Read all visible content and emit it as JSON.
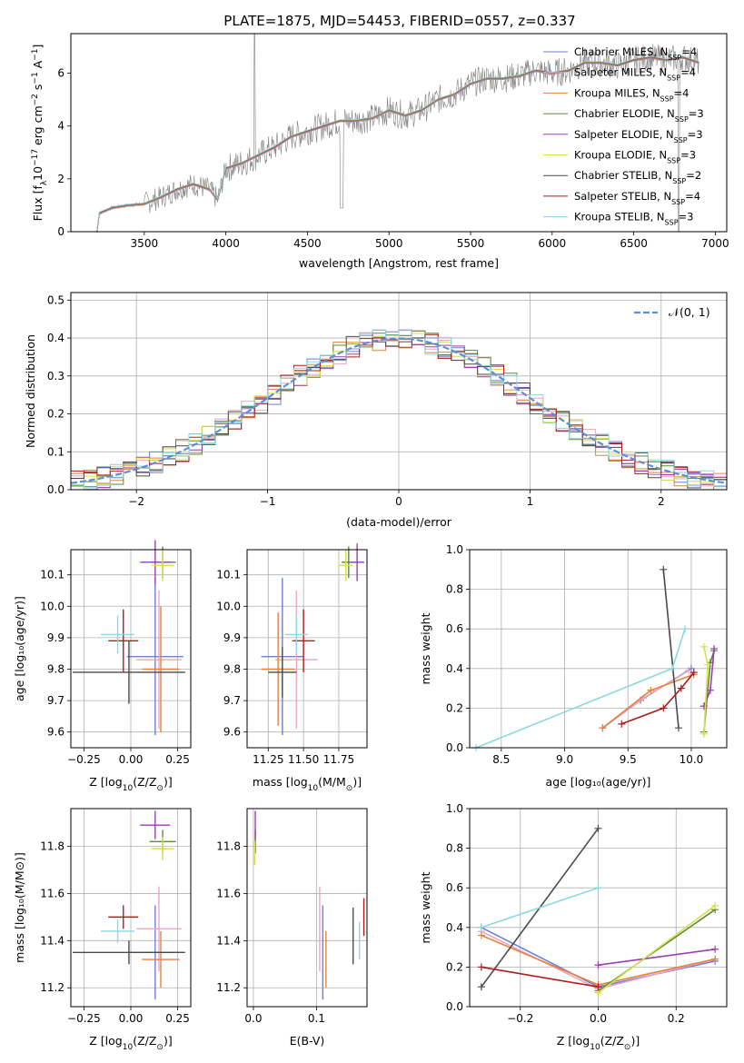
{
  "figure_title": "PLATE=1875, MJD=54453, FIBERID=0557, z=0.337",
  "colors": {
    "chabrier_miles": "#6c7fd8",
    "salpeter_miles": "#e6a6c8",
    "kroupa_miles": "#e8813b",
    "chabrier_elodie": "#5a8a3a",
    "salpeter_elodie": "#9b3db0",
    "kroupa_elodie": "#d6e04a",
    "chabrier_stelib": "#4a4a4a",
    "salpeter_stelib": "#b01c1c",
    "kroupa_stelib": "#8ad8e0",
    "data": "#808080",
    "gaussian": "#5b8fd6"
  },
  "chart_data": [
    {
      "id": "spectrum",
      "type": "line",
      "xlabel": "wavelength [Angstrom, rest frame]",
      "ylabel_main": "Flux [f",
      "ylabel_sub1": "λ",
      "ylabel_mid": "10",
      "ylabel_sup1": "−17",
      "ylabel_rest": " erg cm",
      "ylabel_sup2": "−2",
      "ylabel_s": " s",
      "ylabel_sup3": "−1",
      "ylabel_a": " A",
      "ylabel_sup4": "−1",
      "ylabel_end": "]",
      "xlim": [
        3050,
        7070
      ],
      "ylim": [
        0,
        7.5
      ],
      "xticks": [
        "3500",
        "4000",
        "4500",
        "5000",
        "5500",
        "6000",
        "6500",
        "7000"
      ],
      "yticks": [
        "0",
        "2",
        "4",
        "6"
      ],
      "continuum": [
        [
          3210,
          0.0
        ],
        [
          3225,
          0.7
        ],
        [
          3300,
          0.9
        ],
        [
          3400,
          1.0
        ],
        [
          3500,
          1.05
        ],
        [
          3600,
          1.3
        ],
        [
          3700,
          1.6
        ],
        [
          3800,
          1.8
        ],
        [
          3900,
          1.6
        ],
        [
          3950,
          1.2
        ],
        [
          4000,
          2.4
        ],
        [
          4100,
          2.6
        ],
        [
          4200,
          2.9
        ],
        [
          4300,
          3.2
        ],
        [
          4400,
          3.6
        ],
        [
          4500,
          3.8
        ],
        [
          4600,
          4.0
        ],
        [
          4700,
          4.2
        ],
        [
          4800,
          4.2
        ],
        [
          4900,
          4.3
        ],
        [
          5000,
          4.6
        ],
        [
          5100,
          4.4
        ],
        [
          5200,
          4.6
        ],
        [
          5300,
          5.0
        ],
        [
          5400,
          5.2
        ],
        [
          5500,
          5.6
        ],
        [
          5600,
          5.8
        ],
        [
          5700,
          5.8
        ],
        [
          5800,
          5.9
        ],
        [
          5900,
          6.1
        ],
        [
          6000,
          6.0
        ],
        [
          6100,
          6.1
        ],
        [
          6200,
          6.4
        ],
        [
          6300,
          6.4
        ],
        [
          6400,
          6.3
        ],
        [
          6500,
          6.5
        ],
        [
          6600,
          6.6
        ],
        [
          6700,
          6.5
        ],
        [
          6800,
          6.6
        ],
        [
          6900,
          6.4
        ]
      ],
      "legend": [
        {
          "label": "Chabrier MILES, N",
          "sub": "SSP",
          "suffix": "=4",
          "color_key": "chabrier_miles"
        },
        {
          "label": "Salpeter MILES, N",
          "sub": "SSP",
          "suffix": "=4",
          "color_key": "salpeter_miles"
        },
        {
          "label": "Kroupa MILES, N",
          "sub": "SSP",
          "suffix": "=4",
          "color_key": "kroupa_miles"
        },
        {
          "label": "Chabrier ELODIE, N",
          "sub": "SSP",
          "suffix": "=3",
          "color_key": "chabrier_elodie"
        },
        {
          "label": "Salpeter ELODIE, N",
          "sub": "SSP",
          "suffix": "=3",
          "color_key": "salpeter_elodie"
        },
        {
          "label": "Kroupa ELODIE, N",
          "sub": "SSP",
          "suffix": "=3",
          "color_key": "kroupa_elodie"
        },
        {
          "label": "Chabrier STELIB, N",
          "sub": "SSP",
          "suffix": "=2",
          "color_key": "chabrier_stelib"
        },
        {
          "label": "Salpeter STELIB, N",
          "sub": "SSP",
          "suffix": "=4",
          "color_key": "salpeter_stelib"
        },
        {
          "label": "Kroupa STELIB, N",
          "sub": "SSP",
          "suffix": "=3",
          "color_key": "kroupa_stelib"
        }
      ]
    },
    {
      "id": "residuals",
      "type": "line",
      "xlabel": "(data-model)/error",
      "ylabel": "Normed distribution",
      "xlim": [
        -2.5,
        2.5
      ],
      "ylim": [
        0,
        0.52
      ],
      "xticks": [
        "−2",
        "−1",
        "0",
        "1",
        "2"
      ],
      "yticks": [
        "0.0",
        "0.1",
        "0.2",
        "0.3",
        "0.4",
        "0.5"
      ],
      "grid": true,
      "legend_label": "𝒩(0, 1)",
      "legend_position": "top-right"
    },
    {
      "id": "age_vs_Z",
      "type": "scatter",
      "xlabel": "Z [log",
      "xlabel_sub": "10",
      "xlabel_rest": "(Z/Z",
      "xlabel_sub2": "⊙",
      "xlabel_end": ")]",
      "ylabel": "age  [log₁₀(age/yr)]",
      "xlim": [
        -0.32,
        0.32
      ],
      "ylim": [
        9.55,
        10.18
      ],
      "xticks": [
        "−0.25",
        "0.00",
        "0.25"
      ],
      "yticks": [
        "9.6",
        "9.7",
        "9.8",
        "9.9",
        "10.0",
        "10.1"
      ],
      "points": [
        {
          "x": 0.13,
          "y": 9.84,
          "xe": 0.15,
          "ye": 0.25,
          "c": "chabrier_miles"
        },
        {
          "x": 0.15,
          "y": 9.83,
          "xe": 0.12,
          "ye": 0.22,
          "c": "salpeter_miles"
        },
        {
          "x": 0.16,
          "y": 9.8,
          "xe": 0.1,
          "ye": 0.2,
          "c": "kroupa_miles"
        },
        {
          "x": 0.17,
          "y": 10.14,
          "xe": 0.07,
          "ye": 0.05,
          "c": "chabrier_elodie"
        },
        {
          "x": 0.13,
          "y": 10.14,
          "xe": 0.08,
          "ye": 0.07,
          "c": "salpeter_elodie"
        },
        {
          "x": 0.17,
          "y": 10.13,
          "xe": 0.06,
          "ye": 0.05,
          "c": "kroupa_elodie"
        },
        {
          "x": -0.01,
          "y": 9.79,
          "xe": 0.3,
          "ye": 0.1,
          "c": "chabrier_stelib"
        },
        {
          "x": -0.04,
          "y": 9.89,
          "xe": 0.08,
          "ye": 0.1,
          "c": "salpeter_stelib"
        },
        {
          "x": -0.07,
          "y": 9.91,
          "xe": 0.09,
          "ye": 0.06,
          "c": "kroupa_stelib"
        }
      ]
    },
    {
      "id": "age_vs_mass",
      "type": "scatter",
      "xlabel": "mass [log",
      "xlabel_sub": "10",
      "xlabel_rest": "(M/M",
      "xlabel_sub2": "⊙",
      "xlabel_end": ")]",
      "xlim": [
        11.1,
        11.95
      ],
      "ylim": [
        9.55,
        10.18
      ],
      "xticks": [
        "11.25",
        "11.50",
        "11.75"
      ],
      "yticks": [
        "9.6",
        "9.7",
        "9.8",
        "9.9",
        "10.0",
        "10.1"
      ],
      "points": [
        {
          "x": 11.35,
          "y": 9.84,
          "xe": 0.15,
          "ye": 0.25,
          "c": "chabrier_miles"
        },
        {
          "x": 11.45,
          "y": 9.83,
          "xe": 0.15,
          "ye": 0.22,
          "c": "salpeter_miles"
        },
        {
          "x": 11.32,
          "y": 9.8,
          "xe": 0.12,
          "ye": 0.18,
          "c": "kroupa_miles"
        },
        {
          "x": 11.82,
          "y": 10.14,
          "xe": 0.05,
          "ye": 0.05,
          "c": "chabrier_elodie"
        },
        {
          "x": 11.88,
          "y": 10.14,
          "xe": 0.05,
          "ye": 0.06,
          "c": "salpeter_elodie"
        },
        {
          "x": 11.8,
          "y": 10.13,
          "xe": 0.05,
          "ye": 0.05,
          "c": "kroupa_elodie"
        },
        {
          "x": 11.35,
          "y": 9.79,
          "xe": 0.1,
          "ye": 0.08,
          "c": "chabrier_stelib"
        },
        {
          "x": 11.5,
          "y": 9.89,
          "xe": 0.08,
          "ye": 0.1,
          "c": "salpeter_stelib"
        },
        {
          "x": 11.45,
          "y": 9.91,
          "xe": 0.08,
          "ye": 0.06,
          "c": "kroupa_stelib"
        }
      ]
    },
    {
      "id": "weight_vs_age",
      "type": "line",
      "xlabel": "age  [log₁₀(age/yr)]",
      "ylabel": "mass weight",
      "xlim": [
        8.25,
        10.28
      ],
      "ylim": [
        0,
        1
      ],
      "xticks": [
        "8.5",
        "9.0",
        "9.5",
        "10.0"
      ],
      "yticks": [
        "0.0",
        "0.2",
        "0.4",
        "0.6",
        "0.8",
        "1.0"
      ],
      "grid": true,
      "series": [
        {
          "c": "chabrier_miles",
          "points": [
            [
              9.3,
              0.1
            ],
            [
              9.6,
              0.24
            ],
            [
              10.0,
              0.4
            ]
          ]
        },
        {
          "c": "salpeter_miles",
          "points": [
            [
              9.3,
              0.1
            ],
            [
              9.62,
              0.25
            ],
            [
              9.98,
              0.39
            ]
          ]
        },
        {
          "c": "kroupa_miles",
          "points": [
            [
              9.3,
              0.1
            ],
            [
              9.68,
              0.29
            ],
            [
              10.02,
              0.37
            ]
          ]
        },
        {
          "c": "chabrier_elodie",
          "points": [
            [
              10.1,
              0.08
            ],
            [
              10.15,
              0.43
            ],
            [
              10.18,
              0.49
            ]
          ]
        },
        {
          "c": "salpeter_elodie",
          "points": [
            [
              10.1,
              0.21
            ],
            [
              10.15,
              0.29
            ],
            [
              10.18,
              0.5
            ]
          ]
        },
        {
          "c": "kroupa_elodie",
          "points": [
            [
              10.1,
              0.07
            ],
            [
              10.13,
              0.42
            ],
            [
              10.1,
              0.51
            ]
          ]
        },
        {
          "c": "chabrier_stelib",
          "points": [
            [
              9.78,
              0.9
            ],
            [
              9.9,
              0.1
            ]
          ]
        },
        {
          "c": "salpeter_stelib",
          "points": [
            [
              9.45,
              0.12
            ],
            [
              9.78,
              0.2
            ],
            [
              9.92,
              0.3
            ],
            [
              10.02,
              0.38
            ]
          ]
        },
        {
          "c": "kroupa_stelib",
          "points": [
            [
              8.3,
              0.0
            ],
            [
              9.85,
              0.4
            ],
            [
              9.95,
              0.6
            ]
          ]
        }
      ]
    },
    {
      "id": "mass_vs_Z",
      "type": "scatter",
      "xlabel": "Z [log",
      "xlabel_sub": "10",
      "xlabel_rest": "(Z/Z",
      "xlabel_sub2": "⊙",
      "xlabel_end": ")]",
      "ylabel": "mass [log₁₀(M/M⊙)]",
      "xlim": [
        -0.32,
        0.32
      ],
      "ylim": [
        11.12,
        11.96
      ],
      "xticks": [
        "−0.25",
        "0.00",
        "0.25"
      ],
      "yticks": [
        "11.2",
        "11.4",
        "11.6",
        "11.8"
      ],
      "points": [
        {
          "x": 0.13,
          "y": 11.35,
          "xe": 0.15,
          "ye": 0.2,
          "c": "chabrier_miles"
        },
        {
          "x": 0.15,
          "y": 11.45,
          "xe": 0.12,
          "ye": 0.18,
          "c": "salpeter_miles"
        },
        {
          "x": 0.16,
          "y": 11.32,
          "xe": 0.1,
          "ye": 0.12,
          "c": "kroupa_miles"
        },
        {
          "x": 0.17,
          "y": 11.82,
          "xe": 0.07,
          "ye": 0.05,
          "c": "chabrier_elodie"
        },
        {
          "x": 0.13,
          "y": 11.89,
          "xe": 0.08,
          "ye": 0.06,
          "c": "salpeter_elodie"
        },
        {
          "x": 0.17,
          "y": 11.79,
          "xe": 0.06,
          "ye": 0.05,
          "c": "kroupa_elodie"
        },
        {
          "x": -0.01,
          "y": 11.35,
          "xe": 0.3,
          "ye": 0.05,
          "c": "chabrier_stelib"
        },
        {
          "x": -0.04,
          "y": 11.5,
          "xe": 0.08,
          "ye": 0.05,
          "c": "salpeter_stelib"
        },
        {
          "x": -0.07,
          "y": 11.44,
          "xe": 0.09,
          "ye": 0.05,
          "c": "kroupa_stelib"
        }
      ]
    },
    {
      "id": "mass_vs_ebv",
      "type": "scatter",
      "xlabel": "E(B-V)",
      "xlim": [
        -0.01,
        0.18
      ],
      "ylim": [
        11.12,
        11.96
      ],
      "xticks": [
        "0.0",
        "0.1"
      ],
      "yticks": [
        "11.2",
        "11.4",
        "11.6",
        "11.8"
      ],
      "points": [
        {
          "x": 0.11,
          "y": 11.35,
          "xe": 0.0,
          "ye": 0.2,
          "c": "chabrier_miles"
        },
        {
          "x": 0.105,
          "y": 11.45,
          "xe": 0.0,
          "ye": 0.18,
          "c": "salpeter_miles"
        },
        {
          "x": 0.115,
          "y": 11.32,
          "xe": 0.0,
          "ye": 0.12,
          "c": "kroupa_miles"
        },
        {
          "x": 0.003,
          "y": 11.82,
          "xe": 0.0,
          "ye": 0.05,
          "c": "chabrier_elodie"
        },
        {
          "x": 0.003,
          "y": 11.89,
          "xe": 0.0,
          "ye": 0.06,
          "c": "salpeter_elodie"
        },
        {
          "x": 0.002,
          "y": 11.77,
          "xe": 0.0,
          "ye": 0.05,
          "c": "kroupa_elodie"
        },
        {
          "x": 0.158,
          "y": 11.42,
          "xe": 0.0,
          "ye": 0.12,
          "c": "chabrier_stelib"
        },
        {
          "x": 0.175,
          "y": 11.5,
          "xe": 0.0,
          "ye": 0.08,
          "c": "salpeter_stelib"
        },
        {
          "x": 0.168,
          "y": 11.4,
          "xe": 0.0,
          "ye": 0.08,
          "c": "kroupa_stelib"
        }
      ]
    },
    {
      "id": "weight_vs_Z",
      "type": "line",
      "xlabel": "Z [log",
      "xlabel_sub": "10",
      "xlabel_rest": "(Z/Z",
      "xlabel_sub2": "⊙",
      "xlabel_end": ")]",
      "ylabel": "mass weight",
      "xlim": [
        -0.33,
        0.33
      ],
      "ylim": [
        0,
        1
      ],
      "xticks": [
        "−0.2",
        "0.0",
        "0.2"
      ],
      "yticks": [
        "0.0",
        "0.2",
        "0.4",
        "0.6",
        "0.8",
        "1.0"
      ],
      "grid": true,
      "series": [
        {
          "c": "chabrier_miles",
          "points": [
            [
              -0.3,
              0.4
            ],
            [
              0.0,
              0.1
            ],
            [
              0.3,
              0.23
            ]
          ]
        },
        {
          "c": "salpeter_miles",
          "points": [
            [
              -0.3,
              0.38
            ],
            [
              0.0,
              0.09
            ],
            [
              0.3,
              0.24
            ]
          ]
        },
        {
          "c": "kroupa_miles",
          "points": [
            [
              -0.3,
              0.36
            ],
            [
              0.0,
              0.11
            ],
            [
              0.3,
              0.24
            ]
          ]
        },
        {
          "c": "chabrier_elodie",
          "points": [
            [
              0.0,
              0.08
            ],
            [
              0.3,
              0.49
            ]
          ]
        },
        {
          "c": "salpeter_elodie",
          "points": [
            [
              0.0,
              0.21
            ],
            [
              0.3,
              0.29
            ]
          ]
        },
        {
          "c": "kroupa_elodie",
          "points": [
            [
              0.0,
              0.07
            ],
            [
              0.3,
              0.51
            ]
          ]
        },
        {
          "c": "chabrier_stelib",
          "points": [
            [
              -0.3,
              0.1
            ],
            [
              0.0,
              0.9
            ]
          ]
        },
        {
          "c": "salpeter_stelib",
          "points": [
            [
              -0.3,
              0.2
            ],
            [
              0.0,
              0.1
            ]
          ]
        },
        {
          "c": "kroupa_stelib",
          "points": [
            [
              -0.3,
              0.4
            ],
            [
              0.0,
              0.6
            ]
          ]
        }
      ]
    }
  ]
}
